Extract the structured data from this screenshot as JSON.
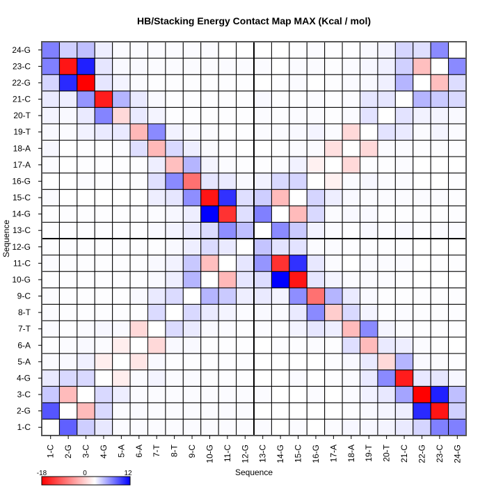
{
  "chart_data": {
    "type": "heatmap",
    "title": "HB/Stacking Energy Contact Map MAX (Kcal / mol)",
    "xlabel": "Sequence",
    "ylabel": "Sequence",
    "labels": [
      "1-C",
      "2-G",
      "3-C",
      "4-G",
      "5-A",
      "6-A",
      "7-T",
      "8-T",
      "9-C",
      "10-G",
      "11-C",
      "12-G",
      "13-C",
      "14-G",
      "15-C",
      "16-G",
      "17-A",
      "18-A",
      "19-T",
      "20-T",
      "21-C",
      "22-G",
      "23-C",
      "24-G"
    ],
    "colorbar": {
      "min": -18,
      "mid": 0,
      "max": 12,
      "min_label": "-18",
      "mid_label": "0",
      "max_label": "12",
      "low_color": "#ff0000",
      "mid_color": "#ffffff",
      "high_color": "#0000ff"
    },
    "z_rows_bottom_to_top": [
      [
        0,
        7.5,
        2.3,
        1.1,
        0.2,
        0.2,
        0.2,
        0.2,
        0.2,
        0.2,
        0.2,
        0.2,
        0.2,
        0,
        0.2,
        0,
        0.2,
        0.4,
        0.4,
        0.5,
        1,
        2,
        6,
        6
      ],
      [
        8,
        0,
        -4.8,
        1.8,
        0.2,
        0.2,
        0.2,
        0.2,
        0.2,
        0.2,
        0.2,
        0.2,
        0,
        0,
        0,
        0,
        0,
        0.1,
        0.3,
        0.5,
        0.8,
        10,
        -16.5,
        2.2
      ],
      [
        2.6,
        -4.8,
        0,
        1.8,
        0.8,
        0.2,
        0.2,
        0.2,
        0.2,
        0.2,
        0.2,
        0.2,
        0.2,
        0,
        0,
        0.2,
        0,
        0.2,
        0.6,
        1.1,
        4.3,
        -18,
        10.5,
        3
      ],
      [
        1,
        1.8,
        1.8,
        0,
        -1.2,
        0.2,
        0.5,
        0.2,
        0.2,
        0.1,
        0.1,
        0.1,
        0,
        0,
        0.2,
        0,
        0.1,
        0.2,
        1,
        5.5,
        -16,
        1.1,
        1.2,
        0.4
      ],
      [
        0.2,
        0.3,
        0.7,
        -1.2,
        0,
        -1.8,
        0.3,
        0.1,
        0.1,
        0.1,
        0.1,
        0.1,
        0,
        0,
        0,
        0,
        0.1,
        0.3,
        1,
        -2.7,
        3.5,
        0.3,
        0.2,
        0.1
      ],
      [
        0.1,
        0.2,
        0.3,
        0.2,
        -1.2,
        0,
        -2.7,
        0.3,
        0.3,
        0.1,
        0.1,
        0.1,
        0,
        0.1,
        0.1,
        0.2,
        0.1,
        1.5,
        -4.8,
        1,
        0.8,
        0.2,
        0.1,
        0
      ],
      [
        0.2,
        0.1,
        0.2,
        0.4,
        0.3,
        -2.7,
        0,
        1.7,
        1,
        0.3,
        0.2,
        0.1,
        0.2,
        0.1,
        0.5,
        1.2,
        0.8,
        -4.8,
        5.5,
        0.5,
        0.2,
        0.1,
        0.1,
        0.1
      ],
      [
        0.2,
        0.1,
        0.1,
        0.1,
        0.1,
        0.1,
        1.7,
        0,
        1.8,
        1,
        0.5,
        0.2,
        0.3,
        0.2,
        1,
        5.5,
        -3.5,
        1.8,
        0.5,
        0.1,
        0.2,
        0.1,
        0.1,
        0.1
      ],
      [
        0.2,
        0.1,
        0.1,
        0.1,
        0.1,
        0.3,
        1,
        1.7,
        0,
        3.5,
        2.5,
        0.8,
        1,
        0.5,
        5.3,
        -10,
        3.5,
        1,
        0.3,
        0.1,
        0.1,
        0.1,
        0.1,
        0.1
      ],
      [
        0.1,
        0.1,
        0.1,
        0.1,
        0.1,
        0.1,
        0.3,
        0.8,
        3.5,
        0,
        -5,
        1.2,
        1.6,
        12,
        -16.5,
        1.2,
        0.5,
        0.2,
        0.2,
        0.2,
        0.1,
        0,
        0,
        0
      ],
      [
        0.2,
        0.1,
        0.1,
        0.1,
        0.1,
        0.1,
        0.3,
        0.6,
        2.6,
        -4.5,
        0,
        1.2,
        5,
        -14.5,
        9.7,
        1.1,
        0.2,
        0,
        0.2,
        0.2,
        0.2,
        0,
        0.1,
        0.1
      ],
      [
        0.1,
        0.1,
        0.1,
        0.1,
        0.1,
        0.1,
        0.1,
        0.3,
        0.8,
        1.7,
        1,
        0,
        2.8,
        1.3,
        1.3,
        0.2,
        0.2,
        0.1,
        0.1,
        0.1,
        0.1,
        0,
        0,
        0
      ],
      [
        0.1,
        0.1,
        0.1,
        0.1,
        0.1,
        0.1,
        0.3,
        0.5,
        1,
        1.7,
        5.3,
        3,
        0,
        5.5,
        2.5,
        0.6,
        0.2,
        0.1,
        0.3,
        0.2,
        0.3,
        0.1,
        0.2,
        0.2
      ],
      [
        0.1,
        0.1,
        0.1,
        0.1,
        0.1,
        0.1,
        0.2,
        0.4,
        0.8,
        12,
        -14.5,
        1.5,
        6,
        0,
        -4.8,
        1.8,
        0.2,
        0.3,
        0.3,
        0.1,
        0.1,
        0.1,
        0.1,
        0.1
      ],
      [
        0.2,
        0,
        0,
        0,
        0,
        0,
        0.8,
        1.2,
        5.3,
        -16.5,
        9.7,
        1.5,
        2.3,
        -4.8,
        0,
        2,
        0.8,
        0.3,
        0.2,
        0.2,
        0.2,
        0.2,
        0.2,
        0.1
      ],
      [
        0,
        0,
        0.2,
        0.1,
        0.1,
        0.1,
        1.5,
        5.5,
        -10,
        1.2,
        1,
        0.3,
        0.6,
        1.8,
        2,
        0,
        -1,
        0.2,
        0.4,
        0.2,
        0.2,
        0,
        0,
        0.1
      ],
      [
        0.2,
        0,
        0.1,
        0.1,
        0.1,
        0.1,
        0.8,
        -4.5,
        3.5,
        0.5,
        0.2,
        0.1,
        0.1,
        0.2,
        0.6,
        -1,
        0,
        -2.7,
        0.1,
        0.1,
        0.2,
        0,
        0,
        0
      ],
      [
        0.4,
        0,
        0.1,
        0.1,
        0.2,
        1.5,
        -5,
        1.8,
        0.8,
        0.2,
        0.1,
        0,
        0,
        0.1,
        0.2,
        0.2,
        -2.2,
        0,
        -2.7,
        0.2,
        0.2,
        0.1,
        0.1,
        0.1
      ],
      [
        0.3,
        0.2,
        0.6,
        1,
        1,
        -5,
        5.5,
        0.6,
        0.3,
        0.2,
        0.1,
        0.1,
        0.2,
        0.2,
        0.3,
        0.5,
        0.2,
        -2.7,
        0,
        1.3,
        1,
        0.2,
        0.5,
        0.2
      ],
      [
        0.5,
        0.3,
        1,
        5.8,
        -2.7,
        1,
        0.5,
        0.1,
        0.1,
        0.1,
        0.1,
        0.1,
        0.2,
        0.1,
        0.2,
        0.2,
        0.1,
        0.2,
        1.3,
        0,
        1.3,
        0.6,
        0.5,
        0.3
      ],
      [
        1,
        0.8,
        5,
        -16,
        3.5,
        1,
        0.3,
        0.1,
        0.1,
        0.1,
        0.1,
        0.1,
        0.3,
        0.1,
        0.1,
        0.2,
        0.1,
        0.2,
        1.2,
        1.2,
        0,
        3.5,
        2.5,
        1.8
      ],
      [
        2,
        10,
        -18,
        1.2,
        0.5,
        0.2,
        0.1,
        0.1,
        0.1,
        0.1,
        0.1,
        0.1,
        0,
        0.1,
        0.2,
        0,
        0.1,
        0.2,
        0.3,
        0.7,
        3.5,
        0,
        -4.5,
        1.6
      ],
      [
        6,
        -16.5,
        10.5,
        1.2,
        0.3,
        0.3,
        0.2,
        0.2,
        0.2,
        0.2,
        0.2,
        0.2,
        0.2,
        0,
        0.2,
        0.2,
        0.1,
        0.2,
        0.4,
        0.7,
        2.2,
        -4.5,
        0,
        5.5
      ],
      [
        6,
        2.2,
        3,
        0.8,
        0.2,
        0.2,
        0.2,
        0.2,
        0.2,
        0.2,
        0,
        0,
        0,
        0,
        0.1,
        0.2,
        0.1,
        0.1,
        0.3,
        0.5,
        2,
        1.5,
        5.5,
        0
      ]
    ]
  }
}
